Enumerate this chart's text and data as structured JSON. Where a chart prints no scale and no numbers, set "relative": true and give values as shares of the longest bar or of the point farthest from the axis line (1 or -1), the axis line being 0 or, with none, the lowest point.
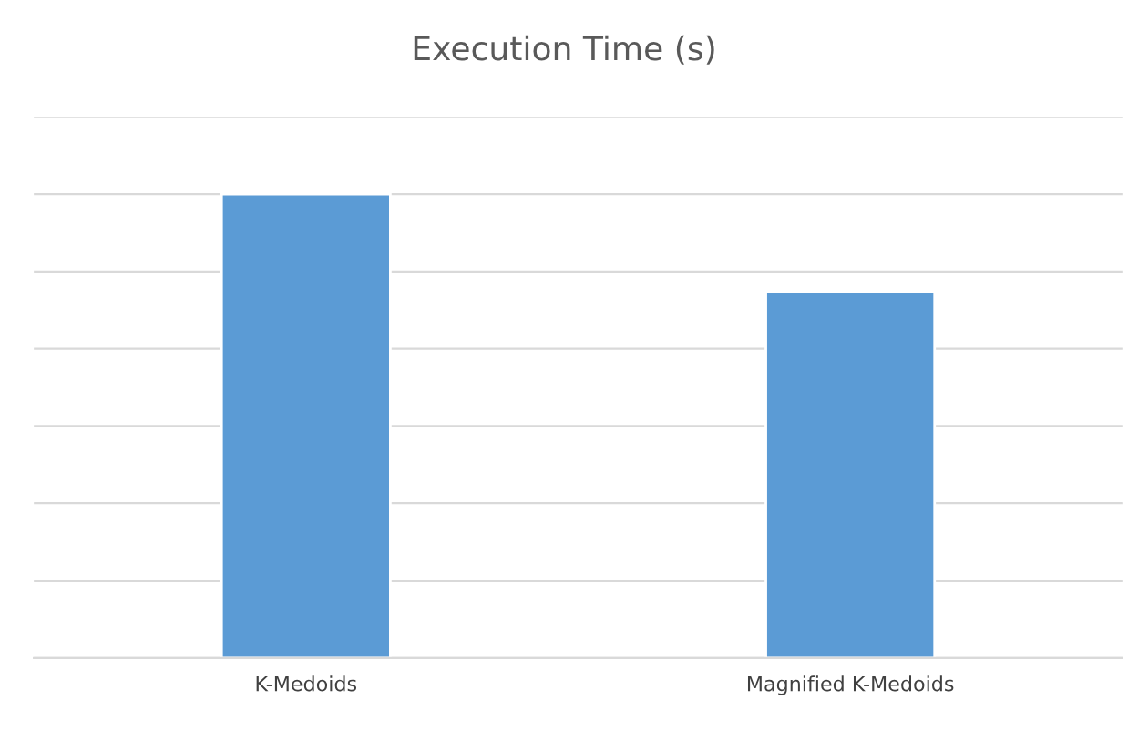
{
  "chart_data": {
    "type": "bar",
    "title": "Execution Time (s)",
    "categories": [
      "K-Medoids",
      "Magnified K-Medoids"
    ],
    "values": [
      1,
      0.79
    ],
    "color": "#5b9bd5",
    "relative": true,
    "grid": "y"
  }
}
